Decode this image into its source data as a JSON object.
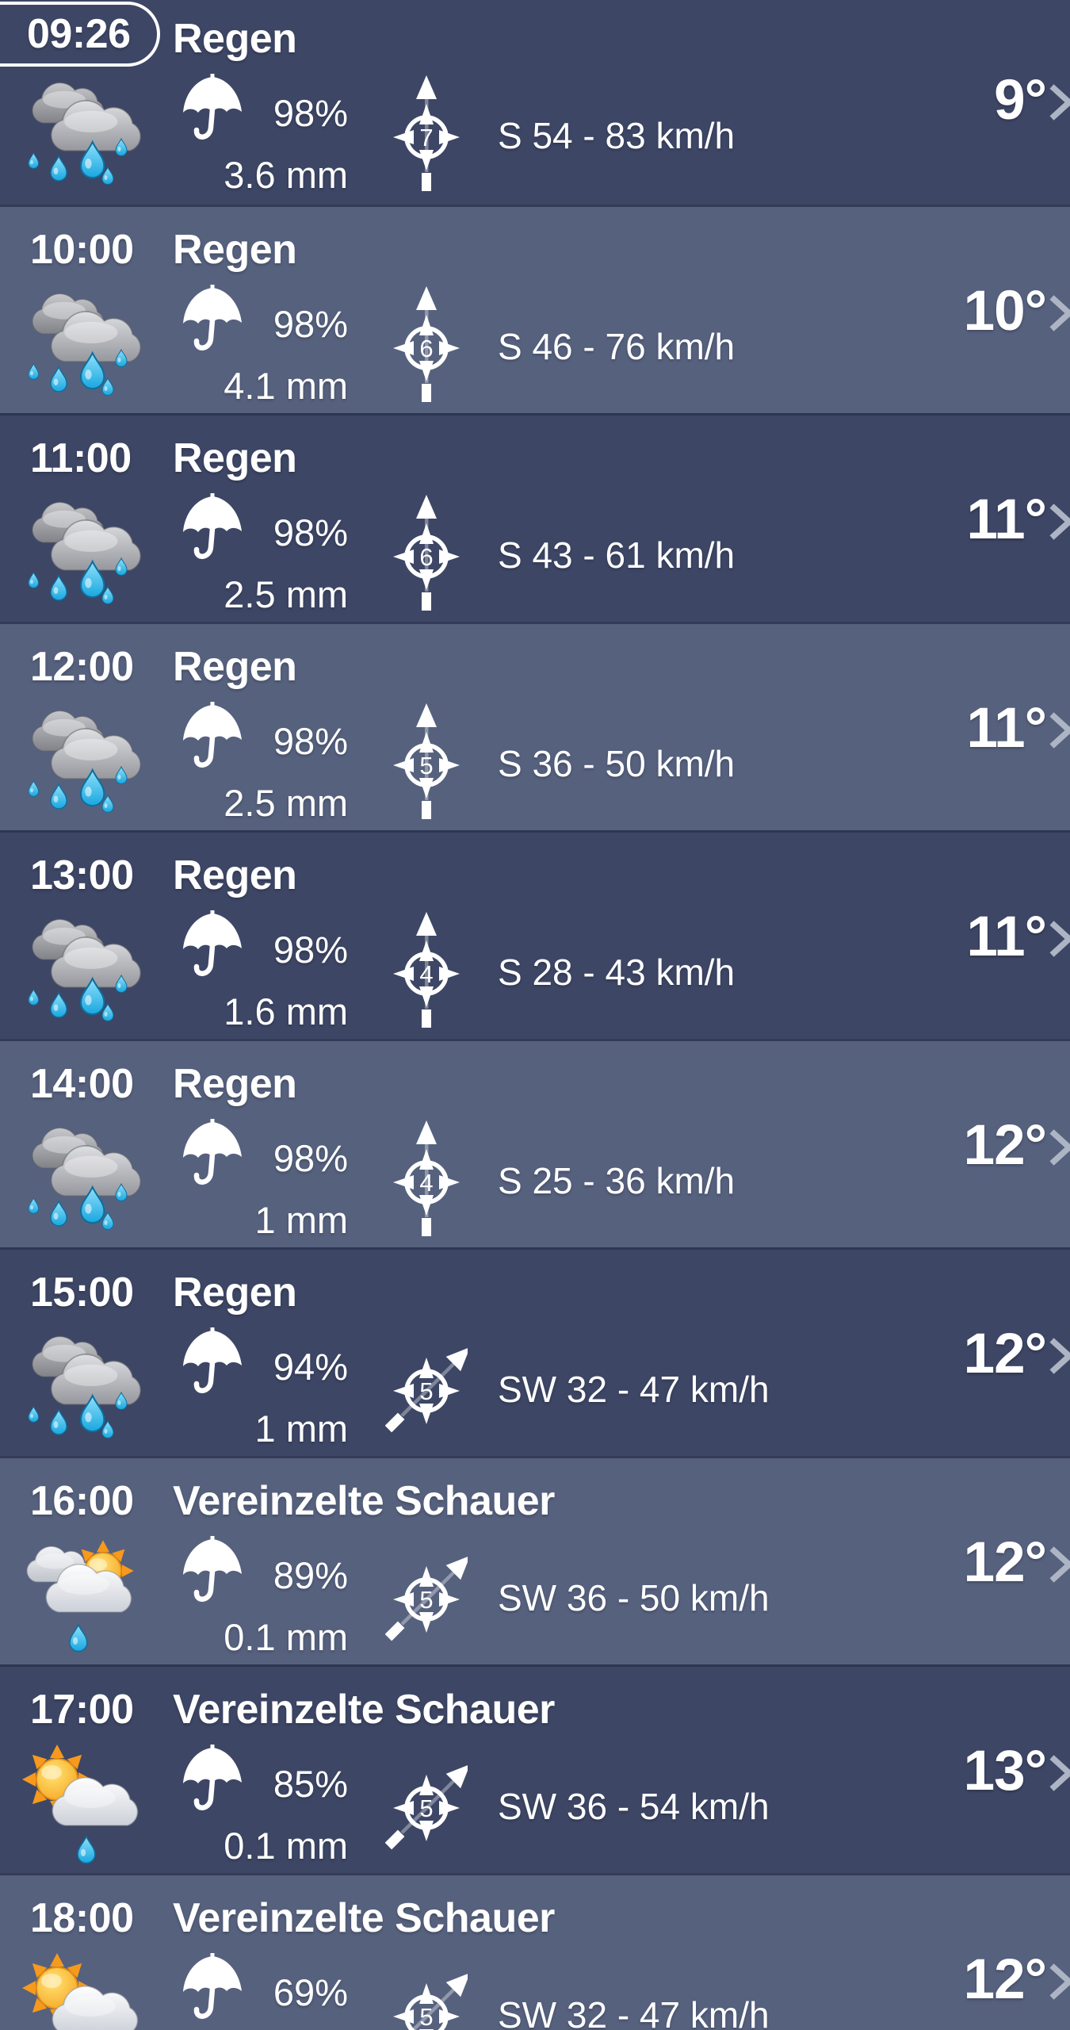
{
  "screen": {
    "type": "weather-hourly-forecast-list",
    "language": "de"
  },
  "colors": {
    "row_dark": "#3D4665",
    "row_light": "#56617E",
    "text": "#FFFFFF",
    "chevron": "#ADB5C5",
    "drop_blue": "#2EB5E9",
    "sun_orange": "#F6A21C",
    "cloud_gray": "#9B9CA0"
  },
  "icons": {
    "umbrella": "umbrella-icon",
    "compass": "wind-compass-icon",
    "chevron": "chevron-right-icon"
  },
  "units": {
    "wind": "km/h",
    "precip": "mm"
  },
  "rows": [
    {
      "time": "09:26",
      "is_now": true,
      "condition": "Regen",
      "icon": "rain",
      "precip_probability": "98%",
      "precip_amount": "3.6 mm",
      "beaufort": "7",
      "wind_direction": "S",
      "wind_label": "S 54 - 83 km/h",
      "temperature": "9°"
    },
    {
      "time": "10:00",
      "is_now": false,
      "condition": "Regen",
      "icon": "rain",
      "precip_probability": "98%",
      "precip_amount": "4.1 mm",
      "beaufort": "6",
      "wind_direction": "S",
      "wind_label": "S 46 - 76 km/h",
      "temperature": "10°"
    },
    {
      "time": "11:00",
      "is_now": false,
      "condition": "Regen",
      "icon": "rain",
      "precip_probability": "98%",
      "precip_amount": "2.5 mm",
      "beaufort": "6",
      "wind_direction": "S",
      "wind_label": "S 43 - 61 km/h",
      "temperature": "11°"
    },
    {
      "time": "12:00",
      "is_now": false,
      "condition": "Regen",
      "icon": "rain",
      "precip_probability": "98%",
      "precip_amount": "2.5 mm",
      "beaufort": "5",
      "wind_direction": "S",
      "wind_label": "S 36 - 50 km/h",
      "temperature": "11°"
    },
    {
      "time": "13:00",
      "is_now": false,
      "condition": "Regen",
      "icon": "rain",
      "precip_probability": "98%",
      "precip_amount": "1.6 mm",
      "beaufort": "4",
      "wind_direction": "S",
      "wind_label": "S 28 - 43 km/h",
      "temperature": "11°"
    },
    {
      "time": "14:00",
      "is_now": false,
      "condition": "Regen",
      "icon": "rain",
      "precip_probability": "98%",
      "precip_amount": "1 mm",
      "beaufort": "4",
      "wind_direction": "S",
      "wind_label": "S 25 - 36 km/h",
      "temperature": "12°"
    },
    {
      "time": "15:00",
      "is_now": false,
      "condition": "Regen",
      "icon": "rain",
      "precip_probability": "94%",
      "precip_amount": "1 mm",
      "beaufort": "5",
      "wind_direction": "SW",
      "wind_label": "SW 32 - 47 km/h",
      "temperature": "12°"
    },
    {
      "time": "16:00",
      "is_now": false,
      "condition": "Vereinzelte Schauer",
      "icon": "showers-cloudy",
      "precip_probability": "89%",
      "precip_amount": "0.1 mm",
      "beaufort": "5",
      "wind_direction": "SW",
      "wind_label": "SW 36 - 50 km/h",
      "temperature": "12°"
    },
    {
      "time": "17:00",
      "is_now": false,
      "condition": "Vereinzelte Schauer",
      "icon": "showers-sun",
      "precip_probability": "85%",
      "precip_amount": "0.1 mm",
      "beaufort": "5",
      "wind_direction": "SW",
      "wind_label": "SW 36 - 54 km/h",
      "temperature": "13°"
    },
    {
      "time": "18:00",
      "is_now": false,
      "condition": "Vereinzelte Schauer",
      "icon": "showers-sun",
      "precip_probability": "69%",
      "precip_amount": "",
      "beaufort": "5",
      "wind_direction": "SW",
      "wind_label": "SW 32 - 47 km/h",
      "temperature": "12°"
    }
  ]
}
